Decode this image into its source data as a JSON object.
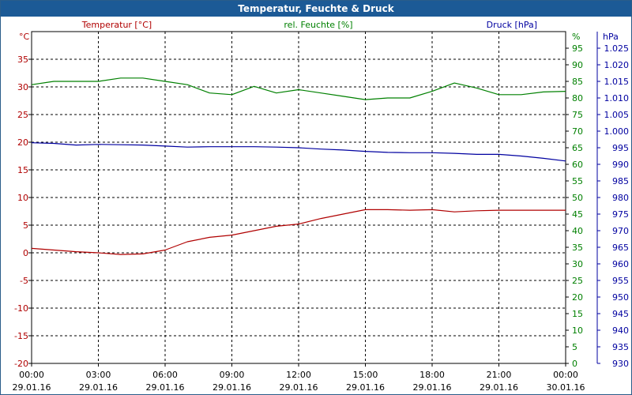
{
  "chart_data": {
    "type": "line",
    "title": "Temperatur, Feuchte & Druck",
    "legend_position": "top",
    "grid": true,
    "colors": {
      "temperature": "#b00000",
      "humidity": "#008000",
      "pressure": "#0000a0",
      "title_bar": "#1c5a96"
    },
    "x_ticks": [
      {
        "time": "00:00",
        "date": "29.01.16"
      },
      {
        "time": "03:00",
        "date": "29.01.16"
      },
      {
        "time": "06:00",
        "date": "29.01.16"
      },
      {
        "time": "09:00",
        "date": "29.01.16"
      },
      {
        "time": "12:00",
        "date": "29.01.16"
      },
      {
        "time": "15:00",
        "date": "29.01.16"
      },
      {
        "time": "18:00",
        "date": "29.01.16"
      },
      {
        "time": "21:00",
        "date": "29.01.16"
      },
      {
        "time": "00:00",
        "date": "30.01.16"
      }
    ],
    "axes": {
      "left": {
        "label": "Temperatur [°C]",
        "unit": "°C",
        "range": [
          -20,
          40
        ],
        "ticks": [
          "-20",
          "-15",
          "-10",
          "-5",
          "0",
          "5",
          "10",
          "15",
          "20",
          "25",
          "30",
          "35"
        ]
      },
      "right1": {
        "label": "rel. Feuchte [%]",
        "unit": "%",
        "range": [
          0,
          100
        ],
        "ticks": [
          "0",
          "5",
          "10",
          "15",
          "20",
          "25",
          "30",
          "35",
          "40",
          "45",
          "50",
          "55",
          "60",
          "65",
          "70",
          "75",
          "80",
          "85",
          "90",
          "95"
        ]
      },
      "right2": {
        "label": "Druck [hPa]",
        "unit": "hPa",
        "range": [
          930,
          1030
        ],
        "ticks": [
          "930",
          "935",
          "940",
          "945",
          "950",
          "955",
          "960",
          "965",
          "970",
          "975",
          "980",
          "985",
          "990",
          "995",
          "1.000",
          "1.005",
          "1.010",
          "1.015",
          "1.020",
          "1.025"
        ]
      }
    },
    "series": [
      {
        "name": "Temperatur [°C]",
        "axis": "left",
        "color": "#b00000",
        "x": [
          "29.01.16 00:00",
          "29.01.16 01:00",
          "29.01.16 02:00",
          "29.01.16 03:00",
          "29.01.16 04:00",
          "29.01.16 05:00",
          "29.01.16 06:00",
          "29.01.16 07:00",
          "29.01.16 08:00",
          "29.01.16 09:00",
          "29.01.16 10:00",
          "29.01.16 11:00",
          "29.01.16 12:00",
          "29.01.16 13:00",
          "29.01.16 14:00",
          "29.01.16 15:00",
          "29.01.16 16:00",
          "29.01.16 17:00",
          "29.01.16 18:00",
          "29.01.16 19:00",
          "29.01.16 20:00",
          "29.01.16 21:00",
          "29.01.16 22:00",
          "29.01.16 23:00",
          "30.01.16 00:00"
        ],
        "values": [
          0.8,
          0.5,
          0.2,
          0.0,
          -0.3,
          -0.2,
          0.5,
          2.0,
          2.8,
          3.2,
          4.0,
          4.8,
          5.2,
          6.2,
          7.0,
          7.8,
          7.8,
          7.7,
          7.8,
          7.4,
          7.6,
          7.7,
          7.7,
          7.7,
          7.7
        ]
      },
      {
        "name": "rel. Feuchte [%]",
        "axis": "right1",
        "color": "#008000",
        "x": [
          "29.01.16 00:00",
          "29.01.16 01:00",
          "29.01.16 02:00",
          "29.01.16 03:00",
          "29.01.16 04:00",
          "29.01.16 05:00",
          "29.01.16 06:00",
          "29.01.16 07:00",
          "29.01.16 08:00",
          "29.01.16 09:00",
          "29.01.16 10:00",
          "29.01.16 11:00",
          "29.01.16 12:00",
          "29.01.16 13:00",
          "29.01.16 14:00",
          "29.01.16 15:00",
          "29.01.16 16:00",
          "29.01.16 17:00",
          "29.01.16 18:00",
          "29.01.16 19:00",
          "29.01.16 20:00",
          "29.01.16 21:00",
          "29.01.16 22:00",
          "29.01.16 23:00",
          "30.01.16 00:00"
        ],
        "values": [
          84.0,
          85.0,
          85.0,
          85.0,
          86.0,
          86.0,
          85.0,
          84.0,
          81.5,
          81.0,
          83.5,
          81.5,
          82.5,
          81.5,
          80.5,
          79.5,
          80.0,
          80.0,
          82.0,
          84.5,
          83.0,
          81.0,
          81.0,
          81.8,
          82.0
        ]
      },
      {
        "name": "Druck [hPa]",
        "axis": "right2",
        "color": "#0000a0",
        "x": [
          "29.01.16 00:00",
          "29.01.16 01:00",
          "29.01.16 02:00",
          "29.01.16 03:00",
          "29.01.16 04:00",
          "29.01.16 05:00",
          "29.01.16 06:00",
          "29.01.16 07:00",
          "29.01.16 08:00",
          "29.01.16 09:00",
          "29.01.16 10:00",
          "29.01.16 11:00",
          "29.01.16 12:00",
          "29.01.16 13:00",
          "29.01.16 14:00",
          "29.01.16 15:00",
          "29.01.16 16:00",
          "29.01.16 17:00",
          "29.01.16 18:00",
          "29.01.16 19:00",
          "29.01.16 20:00",
          "29.01.16 21:00",
          "29.01.16 22:00",
          "29.01.16 23:00",
          "30.01.16 00:00"
        ],
        "values": [
          996.5,
          996.3,
          995.8,
          996.0,
          995.9,
          995.8,
          995.5,
          995.2,
          995.3,
          995.3,
          995.3,
          995.2,
          995.0,
          994.6,
          994.3,
          993.9,
          993.6,
          993.5,
          993.5,
          993.3,
          993.0,
          993.0,
          992.5,
          991.8,
          991.0
        ]
      }
    ]
  }
}
